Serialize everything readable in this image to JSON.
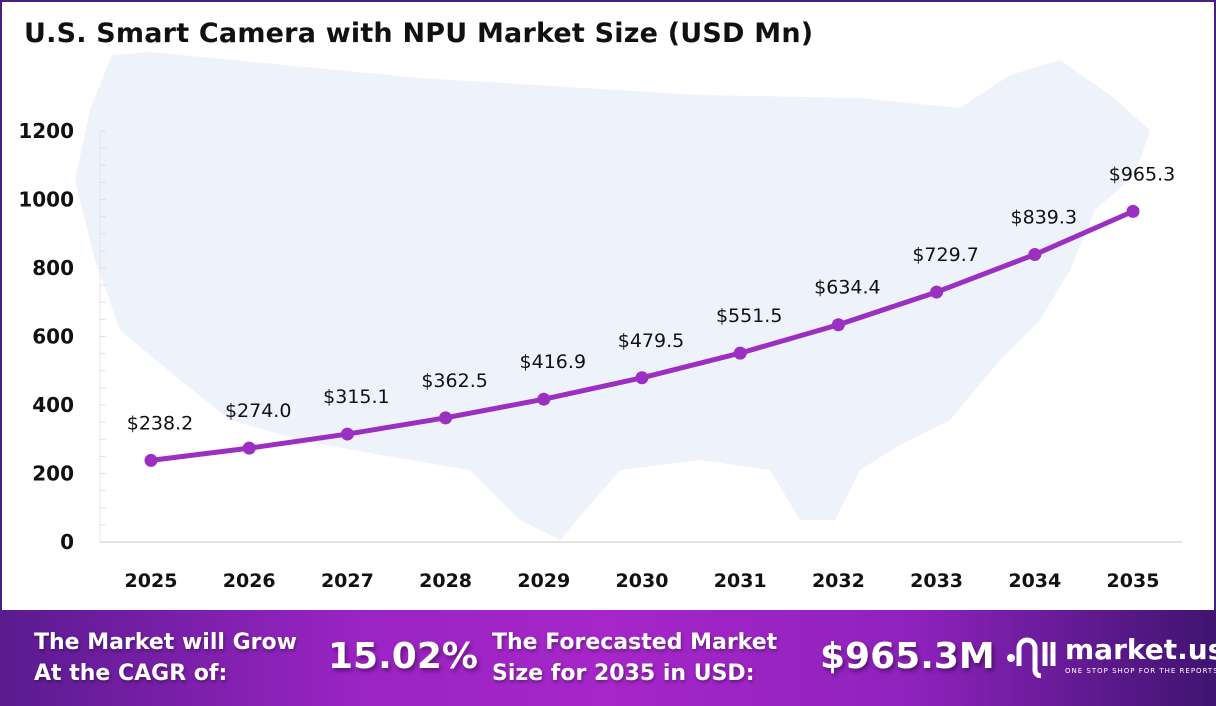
{
  "title": "U.S. Smart Camera with NPU Market Size (USD Mn)",
  "chart_data": {
    "type": "line",
    "title": "U.S. Smart Camera with NPU Market Size (USD Mn)",
    "categories": [
      "2025",
      "2026",
      "2027",
      "2028",
      "2029",
      "2030",
      "2031",
      "2032",
      "2033",
      "2034",
      "2035"
    ],
    "values": [
      238.2,
      274.0,
      315.1,
      362.5,
      416.9,
      479.5,
      551.5,
      634.4,
      729.7,
      839.3,
      965.3
    ],
    "data_labels": [
      "$238.2",
      "$274.0",
      "$315.1",
      "$362.5",
      "$416.9",
      "$479.5",
      "$551.5",
      "$634.4",
      "$729.7",
      "$839.3",
      "$965.3"
    ],
    "yticks": [
      "0",
      "200",
      "400",
      "600",
      "800",
      "1000",
      "1200"
    ],
    "ylim": [
      0,
      1200
    ],
    "grid": false,
    "line_color": "#9b2fc2",
    "background": "U.S. map silhouette"
  },
  "footer": {
    "cagr_label": [
      "The Market will Grow",
      "At the CAGR of:"
    ],
    "cagr_value": "15.02%",
    "forecast_label": [
      "The Forecasted Market",
      "Size for 2035 in USD:"
    ],
    "forecast_value": "$965.3M",
    "logo_name": "market.us",
    "logo_tagline": "ONE STOP SHOP FOR THE REPORTS"
  }
}
